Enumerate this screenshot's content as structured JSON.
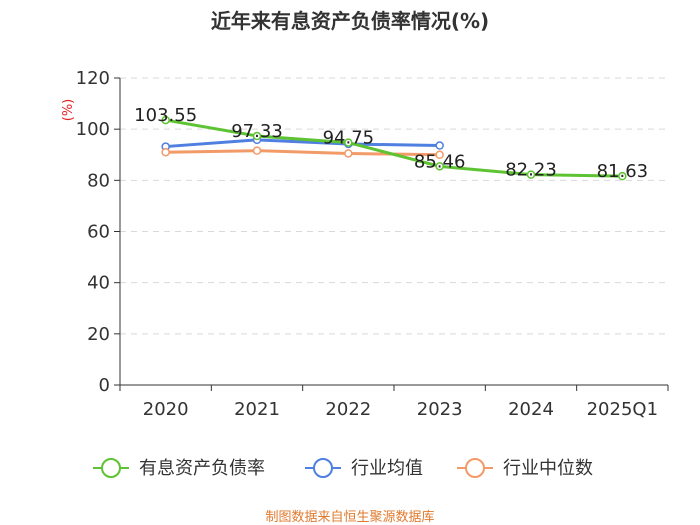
{
  "chart_data": {
    "type": "line",
    "title": "近年来有息资产负债率情况(%)",
    "ylabel": "(%)",
    "xlabel": "",
    "categories": [
      "2020",
      "2021",
      "2022",
      "2023",
      "2024",
      "2025Q1"
    ],
    "ylim": [
      0,
      120
    ],
    "yticks": [
      0,
      20,
      40,
      60,
      80,
      100,
      120
    ],
    "grid": true,
    "legend_position": "bottom",
    "series": [
      {
        "name": "有息资产负债率",
        "color": "#5ec332",
        "values": [
          103.55,
          97.33,
          94.75,
          85.46,
          82.23,
          81.63
        ],
        "labels": [
          "103.55",
          "97.33",
          "94.75",
          "85.46",
          "82.23",
          "81.63"
        ],
        "show_labels": true
      },
      {
        "name": "行业均值",
        "color": "#4f7fe0",
        "values": [
          93.2,
          95.8,
          94.2,
          93.6,
          null,
          null
        ],
        "show_labels": false
      },
      {
        "name": "行业中位数",
        "color": "#f29a68",
        "values": [
          91.0,
          91.6,
          90.5,
          90.0,
          null,
          null
        ],
        "show_labels": false
      }
    ]
  },
  "footer": {
    "source": "制图数据来自恒生聚源数据库"
  }
}
